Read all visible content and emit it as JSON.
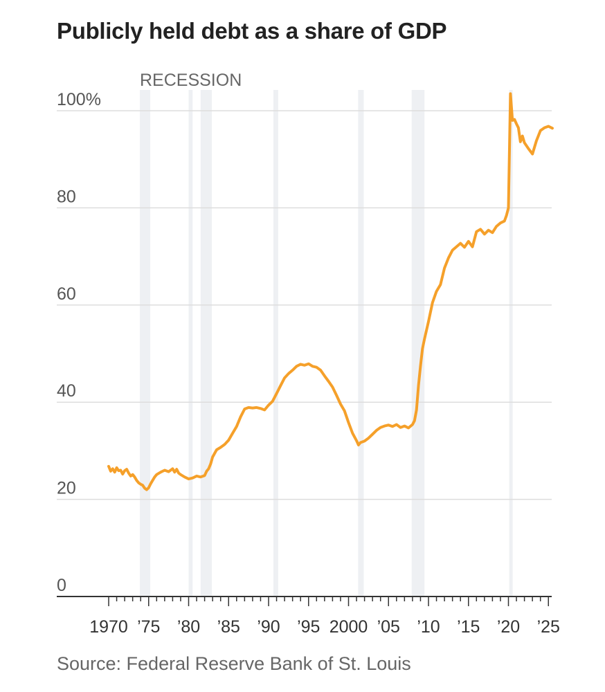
{
  "title": "Publicly held debt as a share of GDP",
  "source": "Source: Federal Reserve Bank of St. Louis",
  "chart_data": {
    "type": "line",
    "title": "Publicly held debt as a share of GDP",
    "xlabel": "",
    "ylabel": "",
    "xlim": [
      1970,
      2025.5
    ],
    "ylim": [
      0,
      100
    ],
    "grid": true,
    "line_color": "#f5a02a",
    "recession_label": "RECESSION",
    "recession_color": "#eef0f3",
    "recessions": [
      [
        1973.9,
        1975.2
      ],
      [
        1980.0,
        1980.5
      ],
      [
        1981.5,
        1982.9
      ],
      [
        1990.6,
        1991.2
      ],
      [
        2001.2,
        2001.9
      ],
      [
        2007.9,
        2009.5
      ],
      [
        2020.1,
        2020.4
      ]
    ],
    "yticks": [
      {
        "value": 0,
        "label": "0"
      },
      {
        "value": 20,
        "label": "20"
      },
      {
        "value": 40,
        "label": "40"
      },
      {
        "value": 60,
        "label": "60"
      },
      {
        "value": 80,
        "label": "80"
      },
      {
        "value": 100,
        "label": "100%"
      }
    ],
    "xticks": [
      {
        "value": 1970,
        "label": "1970"
      },
      {
        "value": 1975,
        "label": "’75"
      },
      {
        "value": 1980,
        "label": "’80"
      },
      {
        "value": 1985,
        "label": "’85"
      },
      {
        "value": 1990,
        "label": "’90"
      },
      {
        "value": 1995,
        "label": "’95"
      },
      {
        "value": 2000,
        "label": "2000"
      },
      {
        "value": 2005,
        "label": "’05"
      },
      {
        "value": 2010,
        "label": "’10"
      },
      {
        "value": 2015,
        "label": "’15"
      },
      {
        "value": 2020,
        "label": "’20"
      },
      {
        "value": 2025,
        "label": "’25"
      }
    ],
    "series": [
      {
        "values": [
          [
            1970.0,
            26.8
          ],
          [
            1970.25,
            25.8
          ],
          [
            1970.5,
            26.3
          ],
          [
            1970.75,
            25.6
          ],
          [
            1971.0,
            26.5
          ],
          [
            1971.25,
            25.9
          ],
          [
            1971.5,
            26.0
          ],
          [
            1971.75,
            25.2
          ],
          [
            1972.0,
            25.9
          ],
          [
            1972.25,
            26.2
          ],
          [
            1972.5,
            25.4
          ],
          [
            1972.75,
            24.8
          ],
          [
            1973.0,
            25.1
          ],
          [
            1973.25,
            24.6
          ],
          [
            1973.5,
            23.9
          ],
          [
            1973.75,
            23.4
          ],
          [
            1974.0,
            23.1
          ],
          [
            1974.25,
            22.9
          ],
          [
            1974.5,
            22.3
          ],
          [
            1974.75,
            22.0
          ],
          [
            1975.0,
            22.4
          ],
          [
            1975.25,
            23.2
          ],
          [
            1975.5,
            23.9
          ],
          [
            1975.75,
            24.6
          ],
          [
            1976.0,
            25.1
          ],
          [
            1976.5,
            25.6
          ],
          [
            1977.0,
            26.0
          ],
          [
            1977.5,
            25.7
          ],
          [
            1978.0,
            26.3
          ],
          [
            1978.25,
            25.6
          ],
          [
            1978.5,
            26.2
          ],
          [
            1978.75,
            25.4
          ],
          [
            1979.0,
            25.1
          ],
          [
            1979.5,
            24.6
          ],
          [
            1980.0,
            24.2
          ],
          [
            1980.5,
            24.4
          ],
          [
            1981.0,
            24.8
          ],
          [
            1981.5,
            24.6
          ],
          [
            1982.0,
            24.9
          ],
          [
            1982.25,
            25.8
          ],
          [
            1982.5,
            26.3
          ],
          [
            1982.75,
            27.3
          ],
          [
            1983.0,
            28.7
          ],
          [
            1983.5,
            30.2
          ],
          [
            1984.0,
            30.7
          ],
          [
            1984.5,
            31.3
          ],
          [
            1985.0,
            32.2
          ],
          [
            1985.5,
            33.6
          ],
          [
            1986.0,
            35.0
          ],
          [
            1986.5,
            37.0
          ],
          [
            1987.0,
            38.6
          ],
          [
            1987.5,
            38.9
          ],
          [
            1988.0,
            38.8
          ],
          [
            1988.5,
            38.9
          ],
          [
            1989.0,
            38.7
          ],
          [
            1989.5,
            38.4
          ],
          [
            1990.0,
            39.4
          ],
          [
            1990.5,
            40.2
          ],
          [
            1991.0,
            41.8
          ],
          [
            1991.5,
            43.4
          ],
          [
            1992.0,
            45.0
          ],
          [
            1992.5,
            45.9
          ],
          [
            1993.0,
            46.6
          ],
          [
            1993.5,
            47.4
          ],
          [
            1994.0,
            47.8
          ],
          [
            1994.5,
            47.6
          ],
          [
            1995.0,
            47.9
          ],
          [
            1995.5,
            47.4
          ],
          [
            1996.0,
            47.2
          ],
          [
            1996.5,
            46.6
          ],
          [
            1997.0,
            45.4
          ],
          [
            1997.5,
            44.3
          ],
          [
            1998.0,
            43.1
          ],
          [
            1998.5,
            41.4
          ],
          [
            1999.0,
            39.6
          ],
          [
            1999.5,
            38.2
          ],
          [
            2000.0,
            35.8
          ],
          [
            2000.5,
            33.6
          ],
          [
            2001.0,
            32.1
          ],
          [
            2001.25,
            31.2
          ],
          [
            2001.5,
            31.7
          ],
          [
            2002.0,
            32.0
          ],
          [
            2002.5,
            32.6
          ],
          [
            2003.0,
            33.4
          ],
          [
            2003.5,
            34.2
          ],
          [
            2004.0,
            34.8
          ],
          [
            2004.5,
            35.1
          ],
          [
            2005.0,
            35.3
          ],
          [
            2005.5,
            35.0
          ],
          [
            2006.0,
            35.4
          ],
          [
            2006.5,
            34.8
          ],
          [
            2007.0,
            35.1
          ],
          [
            2007.5,
            34.7
          ],
          [
            2008.0,
            35.4
          ],
          [
            2008.25,
            36.2
          ],
          [
            2008.5,
            38.4
          ],
          [
            2008.75,
            43.5
          ],
          [
            2009.0,
            47.5
          ],
          [
            2009.25,
            51.0
          ],
          [
            2009.5,
            53.0
          ],
          [
            2010.0,
            56.6
          ],
          [
            2010.5,
            60.5
          ],
          [
            2011.0,
            62.8
          ],
          [
            2011.5,
            64.2
          ],
          [
            2012.0,
            67.6
          ],
          [
            2012.5,
            69.7
          ],
          [
            2013.0,
            71.3
          ],
          [
            2013.5,
            72.0
          ],
          [
            2014.0,
            72.7
          ],
          [
            2014.5,
            71.9
          ],
          [
            2015.0,
            73.1
          ],
          [
            2015.5,
            72.0
          ],
          [
            2016.0,
            75.1
          ],
          [
            2016.5,
            75.6
          ],
          [
            2017.0,
            74.6
          ],
          [
            2017.5,
            75.4
          ],
          [
            2018.0,
            74.9
          ],
          [
            2018.5,
            76.2
          ],
          [
            2019.0,
            76.9
          ],
          [
            2019.5,
            77.3
          ],
          [
            2019.75,
            78.4
          ],
          [
            2020.0,
            80.0
          ],
          [
            2020.25,
            103.5
          ],
          [
            2020.5,
            98.0
          ],
          [
            2020.75,
            98.2
          ],
          [
            2021.0,
            97.3
          ],
          [
            2021.25,
            96.5
          ],
          [
            2021.5,
            93.6
          ],
          [
            2021.75,
            94.8
          ],
          [
            2022.0,
            93.4
          ],
          [
            2022.5,
            92.2
          ],
          [
            2023.0,
            91.1
          ],
          [
            2023.5,
            93.8
          ],
          [
            2024.0,
            95.9
          ],
          [
            2024.5,
            96.5
          ],
          [
            2025.0,
            96.8
          ],
          [
            2025.5,
            96.4
          ]
        ]
      }
    ]
  }
}
